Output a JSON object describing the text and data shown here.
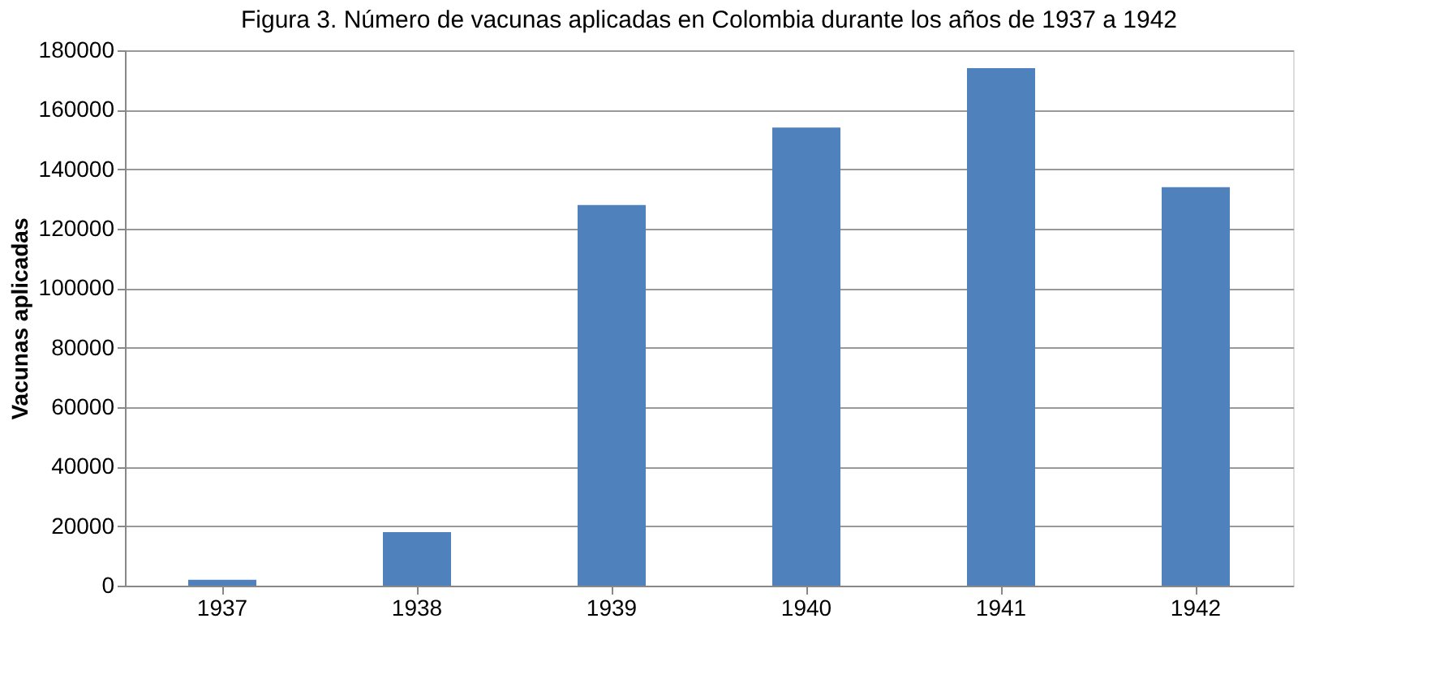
{
  "chart_data": {
    "type": "bar",
    "title": "Figura 3. Número de vacunas aplicadas en Colombia durante los años de 1937 a 1942",
    "ylabel": "Vacunas aplicadas",
    "categories": [
      "1937",
      "1938",
      "1939",
      "1940",
      "1941",
      "1942"
    ],
    "values": [
      2000,
      18000,
      128000,
      154000,
      174000,
      134000
    ],
    "color": "#4f81bd",
    "ylim": [
      0,
      180000
    ],
    "yticks": [
      0,
      20000,
      40000,
      60000,
      80000,
      100000,
      120000,
      140000,
      160000,
      180000
    ],
    "grid": "y"
  }
}
